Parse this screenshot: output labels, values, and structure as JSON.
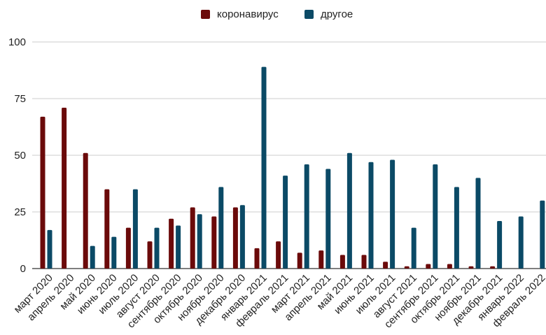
{
  "chart_data": {
    "type": "bar",
    "title": "",
    "xlabel": "",
    "ylabel": "",
    "ylim": [
      0,
      100
    ],
    "yticks": [
      0,
      25,
      50,
      75,
      100
    ],
    "grid": true,
    "legend_position": "top-center",
    "categories": [
      "март 2020",
      "апрель 2020",
      "май 2020",
      "июнь 2020",
      "июль 2020",
      "август 2020",
      "сентябрь 2020",
      "октябрь 2020",
      "ноябрь 2020",
      "декабрь 2020",
      "январь 2021",
      "февраль 2021",
      "март 2021",
      "апрель 2021",
      "май 2021",
      "июнь 2021",
      "июль 2021",
      "август 2021",
      "сентябрь 2021",
      "октябрь 2021",
      "ноябрь 2021",
      "декабрь 2021",
      "январь 2022",
      "февраль 2022"
    ],
    "series": [
      {
        "name": "коронавирус",
        "color": "#6b0a0a",
        "values": [
          67,
          71,
          51,
          35,
          18,
          12,
          22,
          27,
          23,
          27,
          9,
          12,
          7,
          8,
          6,
          6,
          3,
          1,
          2,
          2,
          1,
          1,
          0,
          0
        ]
      },
      {
        "name": "другое",
        "color": "#0b4a66",
        "values": [
          17,
          0,
          10,
          14,
          35,
          18,
          19,
          24,
          36,
          28,
          89,
          41,
          46,
          44,
          51,
          47,
          48,
          18,
          46,
          36,
          40,
          21,
          23,
          30
        ]
      }
    ]
  }
}
